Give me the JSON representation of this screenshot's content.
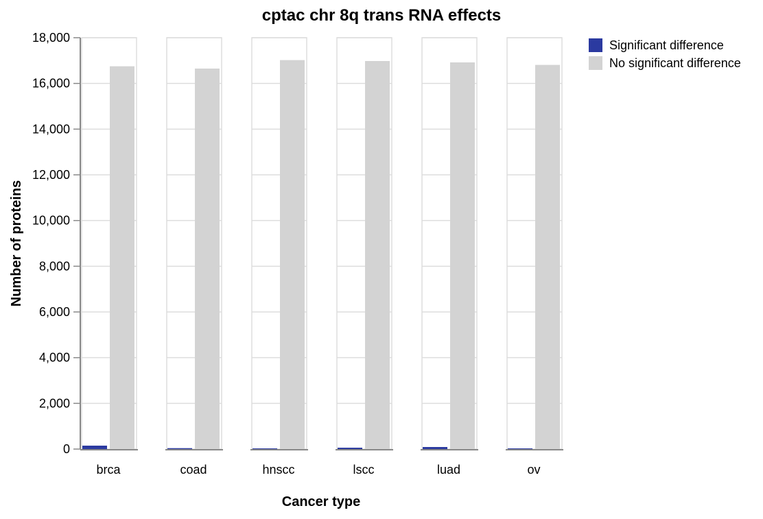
{
  "chart_data": {
    "type": "bar",
    "title": "cptac chr 8q trans RNA effects",
    "xlabel": "Cancer type",
    "ylabel": "Number of proteins",
    "ylim": [
      0,
      18000
    ],
    "yticks": [
      0,
      2000,
      4000,
      6000,
      8000,
      10000,
      12000,
      14000,
      16000,
      18000
    ],
    "ytick_labels": [
      "0",
      "2,000",
      "4,000",
      "6,000",
      "8,000",
      "10,000",
      "12,000",
      "14,000",
      "16,000",
      "18,000"
    ],
    "categories": [
      "brca",
      "coad",
      "hnscc",
      "lscc",
      "luad",
      "ov"
    ],
    "series": [
      {
        "name": "Significant difference",
        "color": "#2b3aa0",
        "values": [
          150,
          40,
          10,
          60,
          90,
          15
        ]
      },
      {
        "name": "No significant difference",
        "color": "#d3d3d3",
        "values": [
          16750,
          16650,
          17020,
          16980,
          16920,
          16810
        ]
      }
    ],
    "grid": true,
    "legend_position": "top-right"
  }
}
